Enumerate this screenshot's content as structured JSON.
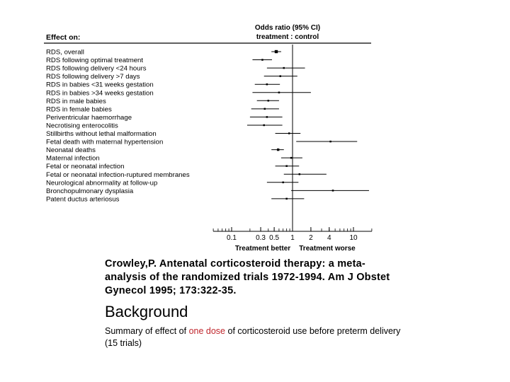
{
  "chart_data": {
    "type": "forest",
    "header_left": "Effect on:",
    "header_right_line1": "Odds ratio (95% CI)",
    "header_right_line2": "treatment : control",
    "xscale": "log",
    "xlim": [
      0.05,
      20
    ],
    "xticks": [
      0.1,
      0.3,
      0.5,
      1,
      2,
      4,
      10
    ],
    "xlabel_left": "Treatment better",
    "xlabel_right": "Treatment worse",
    "reference_line": 1,
    "outcomes": [
      {
        "label": "RDS, overall",
        "or": 0.54,
        "lo": 0.45,
        "hi": 0.65
      },
      {
        "label": "RDS following optimal treatment",
        "or": 0.32,
        "lo": 0.22,
        "hi": 0.46
      },
      {
        "label": "RDS following delivery <24 hours",
        "or": 0.72,
        "lo": 0.38,
        "hi": 1.6
      },
      {
        "label": "RDS following delivery >7 days",
        "or": 0.63,
        "lo": 0.34,
        "hi": 1.2
      },
      {
        "label": "RDS in babies <31 weeks gestation",
        "or": 0.38,
        "lo": 0.24,
        "hi": 0.62
      },
      {
        "label": "RDS in babies >34 weeks gestation",
        "or": 0.6,
        "lo": 0.22,
        "hi": 2.0
      },
      {
        "label": "RDS in male babies",
        "or": 0.4,
        "lo": 0.26,
        "hi": 0.6
      },
      {
        "label": "RDS in female babies",
        "or": 0.35,
        "lo": 0.21,
        "hi": 0.6
      },
      {
        "label": "Periventricular haemorrhage",
        "or": 0.38,
        "lo": 0.2,
        "hi": 0.68
      },
      {
        "label": "Necrotising enterocolitis",
        "or": 0.34,
        "lo": 0.18,
        "hi": 0.68
      },
      {
        "label": "Stillbirths without lethal malformation",
        "or": 0.88,
        "lo": 0.52,
        "hi": 1.35
      },
      {
        "label": "Fetal death with maternal hypertension",
        "or": 4.2,
        "lo": 1.15,
        "hi": 11.5
      },
      {
        "label": "Neonatal deaths",
        "or": 0.58,
        "lo": 0.45,
        "hi": 0.72
      },
      {
        "label": "Maternal infection",
        "or": 0.95,
        "lo": 0.65,
        "hi": 1.45
      },
      {
        "label": "Fetal or neonatal infection",
        "or": 0.8,
        "lo": 0.52,
        "hi": 1.28
      },
      {
        "label": "Fetal or neonatal infection-ruptured membranes",
        "or": 1.3,
        "lo": 0.72,
        "hi": 3.6
      },
      {
        "label": "Neurological abnormality at follow-up",
        "or": 0.7,
        "lo": 0.38,
        "hi": 1.25
      },
      {
        "label": "Bronchopulmonary dysplasia",
        "or": 4.6,
        "lo": 0.95,
        "hi": 18
      },
      {
        "label": "Patent ductus arteriosus",
        "or": 0.8,
        "lo": 0.45,
        "hi": 1.55
      }
    ]
  },
  "citation": "Crowley,P.  Antenatal corticosteroid therapy:  a meta-analysis of the randomized trials 1972-1994.  Am J Obstet Gynecol 1995; 173:322-35.",
  "section_heading": "Background",
  "summary": {
    "before": "Summary of effect of ",
    "highlight": "one dose",
    "after": " of corticosteroid use before preterm delivery (15 trials)",
    "highlight_color": "#c0272d"
  }
}
